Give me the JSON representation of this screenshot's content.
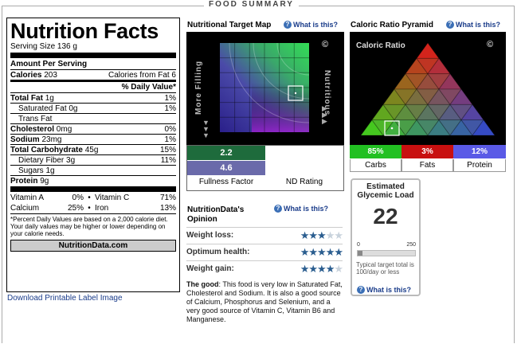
{
  "section_title": "FOOD SUMMARY",
  "nutrition_label": {
    "title": "Nutrition Facts",
    "serving_size": "Serving Size  136 g",
    "amount_per_serving": "Amount Per Serving",
    "calories_label": "Calories",
    "calories_value": "203",
    "calories_from_fat": "Calories from Fat 6",
    "dv_header": "% Daily Value*",
    "rows": [
      {
        "label": "Total Fat",
        "amount": "1g",
        "dv": "1%",
        "bold": true,
        "indent": 0
      },
      {
        "label": "Saturated Fat",
        "amount": "0g",
        "dv": "1%",
        "bold": false,
        "indent": 1
      },
      {
        "label": "Trans Fat",
        "amount": "",
        "dv": "",
        "bold": false,
        "indent": 1
      },
      {
        "label": "Cholesterol",
        "amount": "0mg",
        "dv": "0%",
        "bold": true,
        "indent": 0
      },
      {
        "label": "Sodium",
        "amount": "23mg",
        "dv": "1%",
        "bold": true,
        "indent": 0
      },
      {
        "label": "Total Carbohydrate",
        "amount": "45g",
        "dv": "15%",
        "bold": true,
        "indent": 0
      },
      {
        "label": "Dietary Fiber",
        "amount": "3g",
        "dv": "11%",
        "bold": false,
        "indent": 1
      },
      {
        "label": "Sugars",
        "amount": "1g",
        "dv": "",
        "bold": false,
        "indent": 1
      }
    ],
    "protein_label": "Protein",
    "protein_amount": "9g",
    "vitamins": [
      {
        "left_name": "Vitamin A",
        "left_dv": "0%",
        "right_name": "Vitamin C",
        "right_dv": "71%"
      },
      {
        "left_name": "Calcium",
        "left_dv": "25%",
        "right_name": "Iron",
        "right_dv": "13%"
      }
    ],
    "bullet": "•",
    "footnote": "*Percent Daily Values are based on a 2,000 calorie diet. Your daily values may be higher or lower depending on your calorie needs.",
    "brand": "NutritionData.com"
  },
  "download_link": "Download Printable Label Image",
  "target_map": {
    "title": "Nutritional Target Map",
    "what_link": "What is this?",
    "left_axis": "More Filling",
    "right_axis": "Nutritious",
    "copyright": "©",
    "fullness_value": "2.2",
    "nd_value": "4.6",
    "fullness_label": "Fullness Factor",
    "nd_label": "ND Rating",
    "colors": {
      "fullness": "#1e6b3c",
      "nd": "#6a6aaa"
    }
  },
  "opinion": {
    "title": "NutritionData's Opinion",
    "what_link": "What is this?",
    "items": [
      {
        "label": "Weight loss:",
        "stars": 3,
        "max": 5
      },
      {
        "label": "Optimum health:",
        "stars": 5,
        "max": 5
      },
      {
        "label": "Weight gain:",
        "stars": 4,
        "max": 5
      }
    ],
    "good_label": "The good",
    "good_text": ": This food is very low in Saturated Fat, Cholesterol and Sodium. It is also a good source of Calcium, Phosphorus and Selenium, and a very good source of Vitamin C, Vitamin B6 and Manganese."
  },
  "pyramid": {
    "title": "Caloric Ratio Pyramid",
    "what_link": "What is this?",
    "inner_label": "Caloric Ratio",
    "copyright": "©",
    "carbs_value": "85%",
    "fats_value": "3%",
    "protein_value": "12%",
    "carbs_label": "Carbs",
    "fats_label": "Fats",
    "protein_label": "Protein",
    "colors": {
      "carbs": "#22c022",
      "fats": "#c81010",
      "protein": "#5a5ae6"
    }
  },
  "glycemic": {
    "title_line1": "Estimated",
    "title_line2": "Glycemic Load",
    "value": "22",
    "scale_min": "0",
    "scale_max": "250",
    "fill_fraction": 0.088,
    "note": "Typical target total is 100/day or less",
    "what_link": "What is this?"
  }
}
